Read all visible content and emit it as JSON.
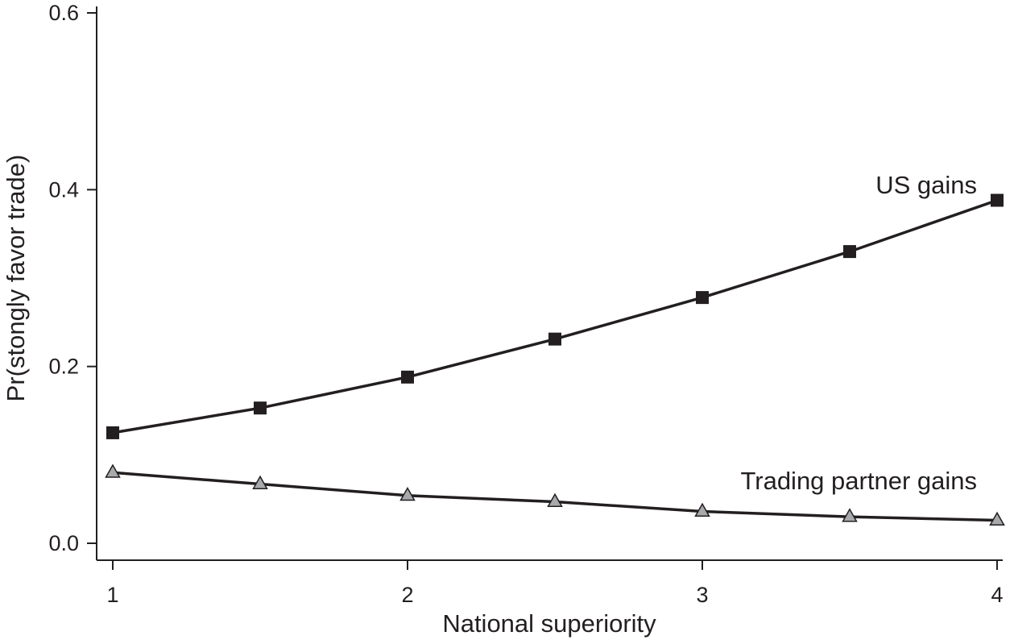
{
  "chart_data": {
    "type": "line",
    "title": "",
    "xlabel": "National superiority",
    "ylabel": "Pr(stongly favor trade)",
    "xlim": [
      1,
      4
    ],
    "ylim": [
      0.0,
      0.6
    ],
    "x_ticks": [
      1,
      2,
      3,
      4
    ],
    "x_tick_labels": [
      "1",
      "2",
      "3",
      "4"
    ],
    "y_ticks": [
      0.0,
      0.2,
      0.4,
      0.6
    ],
    "y_tick_labels": [
      "0.0",
      "0.2",
      "0.4",
      "0.6"
    ],
    "grid": false,
    "x": [
      1,
      1.5,
      2,
      2.5,
      3,
      3.5,
      4
    ],
    "series": [
      {
        "name": "US gains",
        "values": [
          0.125,
          0.153,
          0.188,
          0.231,
          0.278,
          0.33,
          0.388
        ],
        "marker": "square",
        "line_color": "#231f20",
        "marker_fill": "#231f20"
      },
      {
        "name": "Trading partner gains",
        "values": [
          0.08,
          0.067,
          0.054,
          0.047,
          0.036,
          0.03,
          0.026
        ],
        "marker": "triangle",
        "line_color": "#231f20",
        "marker_fill": "#a7a9ac"
      }
    ]
  }
}
